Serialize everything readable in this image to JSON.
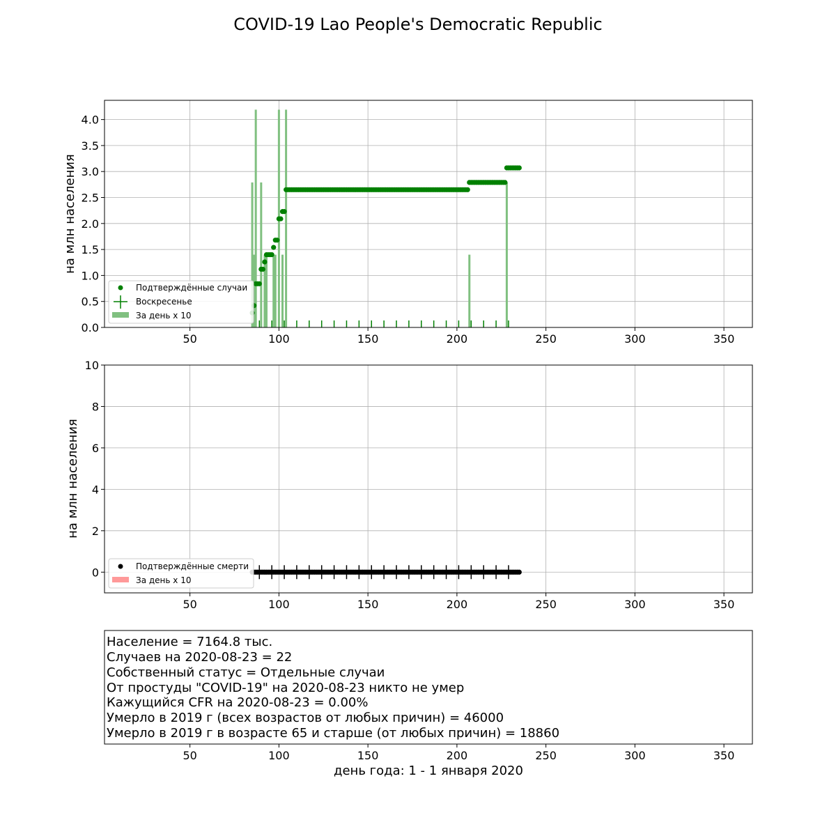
{
  "title": "COVID-19 Lao People's Democratic Republic",
  "xlabel": "день года: 1 - 1 января 2020",
  "colors": {
    "cases": "#008000",
    "cases_bars": "#80c080",
    "deaths": "#000000",
    "deaths_bars": "#ff9999"
  },
  "chart_data": [
    {
      "type": "scatter",
      "panel": "cases",
      "ylabel": "на млн населения",
      "xlim": [
        2,
        366
      ],
      "ylim": [
        0,
        4.37
      ],
      "x_ticks": [
        50,
        100,
        150,
        200,
        250,
        300,
        350
      ],
      "y_ticks": [
        0.0,
        0.5,
        1.0,
        1.5,
        2.0,
        2.5,
        3.0,
        3.5,
        4.0
      ],
      "y_tick_labels": [
        "0.0",
        "0.5",
        "1.0",
        "1.5",
        "2.0",
        "2.5",
        "3.0",
        "3.5",
        "4.0"
      ],
      "grid": true,
      "legend_position": "lower-left",
      "legend": [
        "Подтверждённые случаи",
        "Воскресенье",
        "За день x 10"
      ],
      "cumulative_steps": [
        {
          "x": 85,
          "y": 0.28
        },
        {
          "x": 86,
          "y": 0.42
        },
        {
          "x": 87,
          "y": 0.84
        },
        {
          "x": 90,
          "y": 1.12
        },
        {
          "x": 92,
          "y": 1.26
        },
        {
          "x": 93,
          "y": 1.4
        },
        {
          "x": 97,
          "y": 1.54
        },
        {
          "x": 98,
          "y": 1.68
        },
        {
          "x": 100,
          "y": 2.09
        },
        {
          "x": 102,
          "y": 2.23
        },
        {
          "x": 104,
          "y": 2.65
        },
        {
          "x": 207,
          "y": 2.79
        },
        {
          "x": 228,
          "y": 3.07
        }
      ],
      "last_day": 235,
      "sundays": [
        89,
        96,
        103,
        110,
        117,
        124,
        131,
        138,
        145,
        152,
        159,
        166,
        173,
        180,
        187,
        194,
        201,
        208,
        215,
        222,
        229
      ],
      "daily_x10": [
        {
          "x": 85,
          "y": 2.79
        },
        {
          "x": 86,
          "y": 1.4
        },
        {
          "x": 87,
          "y": 4.19
        },
        {
          "x": 90,
          "y": 2.79
        },
        {
          "x": 92,
          "y": 1.4
        },
        {
          "x": 93,
          "y": 1.4
        },
        {
          "x": 97,
          "y": 1.4
        },
        {
          "x": 98,
          "y": 1.4
        },
        {
          "x": 100,
          "y": 4.19
        },
        {
          "x": 102,
          "y": 1.4
        },
        {
          "x": 104,
          "y": 4.19
        },
        {
          "x": 207,
          "y": 1.4
        },
        {
          "x": 228,
          "y": 2.79
        }
      ]
    },
    {
      "type": "scatter",
      "panel": "deaths",
      "ylabel": "на млн населения",
      "xlim": [
        2,
        366
      ],
      "ylim": [
        -1,
        10
      ],
      "x_ticks": [
        50,
        100,
        150,
        200,
        250,
        300,
        350
      ],
      "y_ticks": [
        0,
        2,
        4,
        6,
        8,
        10
      ],
      "y_tick_labels": [
        "0",
        "2",
        "4",
        "6",
        "8",
        "10"
      ],
      "grid": true,
      "legend_position": "lower-left",
      "legend": [
        "Подтверждённые смерти",
        "За день x 10"
      ],
      "first_day": 85,
      "last_day": 235,
      "value": 0
    },
    {
      "type": "table",
      "panel": "info",
      "xlim": [
        2,
        366
      ],
      "x_ticks": [
        50,
        100,
        150,
        200,
        250,
        300,
        350
      ],
      "lines": [
        "Население = 7164.8 тыс.",
        "Случаев на 2020-08-23 = 22",
        "Собственный статус = Отдельные случаи",
        "От простуды \"COVID-19\" на 2020-08-23 никто не умер",
        "Кажущийся CFR на 2020-08-23 = 0.00%",
        "Умерло в 2019 г (всех возрастов от любых причин) = 46000",
        "Умерло в 2019 г в возрасте 65 и старше (от любых причин) = 18860"
      ]
    }
  ]
}
